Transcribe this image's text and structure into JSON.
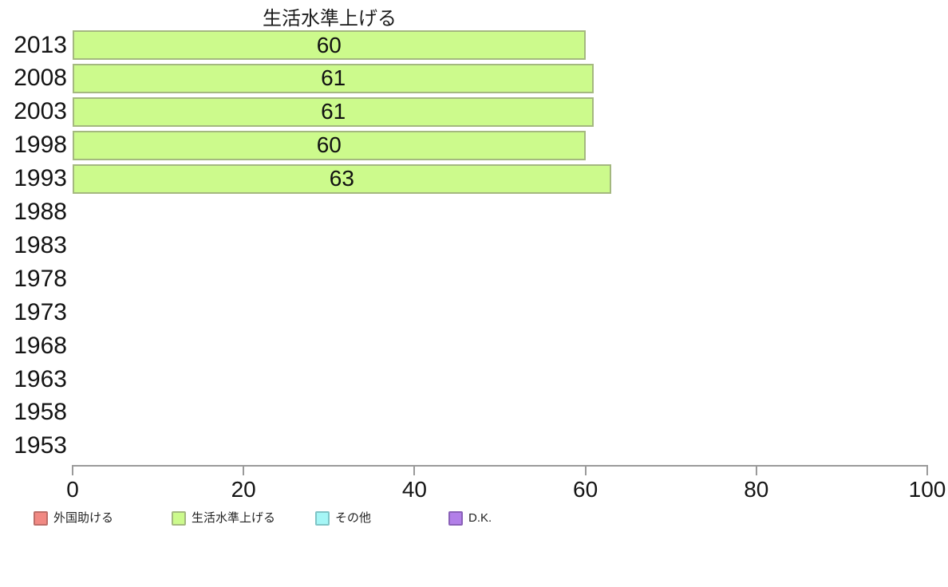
{
  "chart_data": {
    "type": "bar",
    "orientation": "horizontal",
    "title": "生活水準上げる",
    "categories": [
      "2013",
      "2008",
      "2003",
      "1998",
      "1993",
      "1988",
      "1983",
      "1978",
      "1973",
      "1968",
      "1963",
      "1958",
      "1953"
    ],
    "series": [
      {
        "name": "外国助ける",
        "color": "#f18983",
        "border_color": "#bd6e69",
        "values": [
          null,
          null,
          null,
          null,
          null,
          null,
          null,
          null,
          null,
          null,
          null,
          null,
          null
        ]
      },
      {
        "name": "生活水準上げる",
        "color": "#ccfa8c",
        "border_color": "#a4b87f",
        "values": [
          60,
          61,
          61,
          60,
          63,
          null,
          null,
          null,
          null,
          null,
          null,
          null,
          null
        ]
      },
      {
        "name": "その他",
        "color": "#a5f6f6",
        "border_color": "#7fc4c6",
        "values": [
          null,
          null,
          null,
          null,
          null,
          null,
          null,
          null,
          null,
          null,
          null,
          null,
          null
        ]
      },
      {
        "name": "D.K.",
        "color": "#b27fe8",
        "border_color": "#8a61b8",
        "values": [
          null,
          null,
          null,
          null,
          null,
          null,
          null,
          null,
          null,
          null,
          null,
          null,
          null
        ]
      }
    ],
    "xlim": [
      0,
      100
    ],
    "x_ticks": [
      "0",
      "20",
      "40",
      "60",
      "80",
      "100"
    ],
    "grid": false,
    "legend_position": "bottom",
    "axis_color": "#9a9a9a"
  }
}
